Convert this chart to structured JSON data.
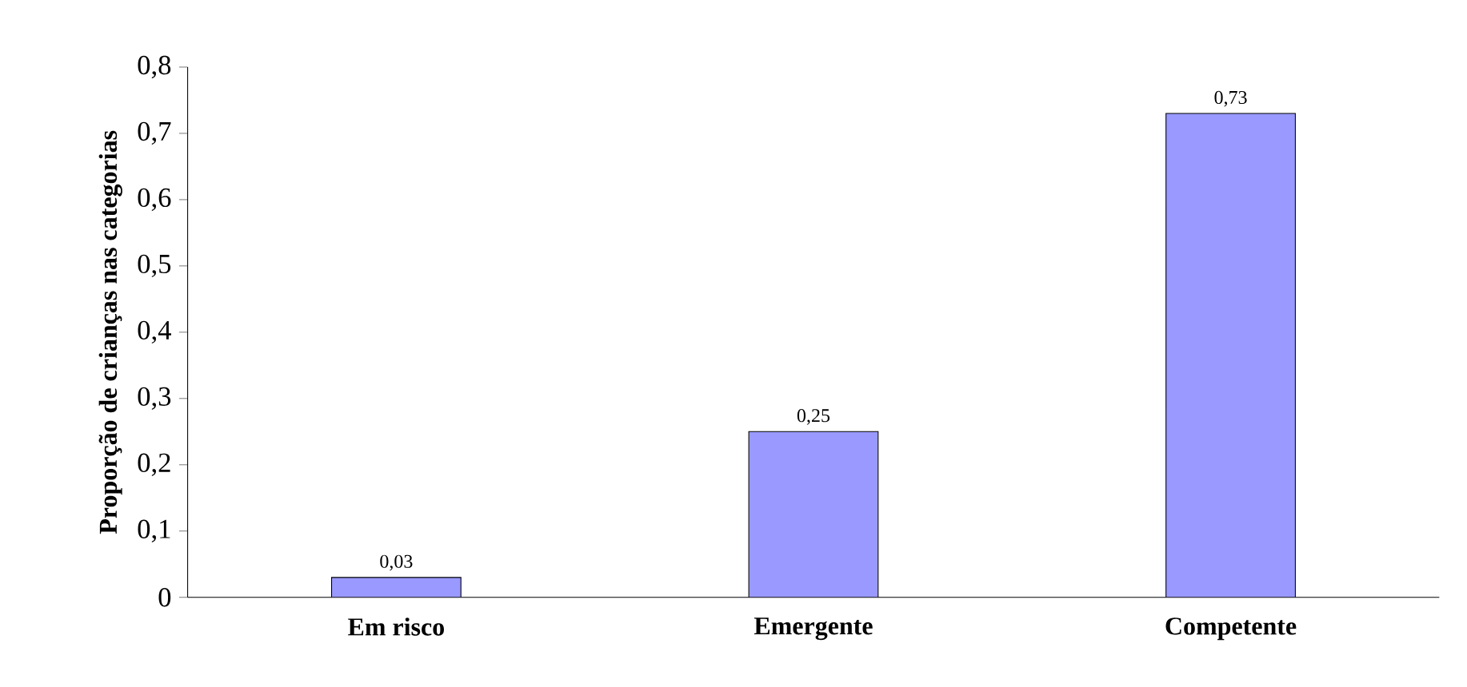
{
  "chart_data": {
    "type": "bar",
    "ylabel": "Proporção de crianças nas categorias",
    "categories": [
      "Em risco",
      "Emergente",
      "Competente"
    ],
    "values": [
      0.03,
      0.25,
      0.73
    ],
    "value_labels": [
      "0,03",
      "0,25",
      "0,73"
    ],
    "color": "#9999ff",
    "ylim": [
      0,
      0.8
    ],
    "yticks": [
      0,
      {
        "value": 0.1,
        "label": "0,1"
      },
      {
        "value": 0.2,
        "label": "0,2"
      },
      {
        "value": 0.3,
        "label": "0,3"
      },
      {
        "value": 0.4,
        "label": "0,4"
      },
      {
        "value": 0.5,
        "label": "0,5"
      },
      {
        "value": 0.6,
        "label": "0,6"
      },
      {
        "value": 0.7,
        "label": "0,7"
      },
      {
        "value": 0.8,
        "label": "0,8"
      }
    ],
    "grid": false
  }
}
